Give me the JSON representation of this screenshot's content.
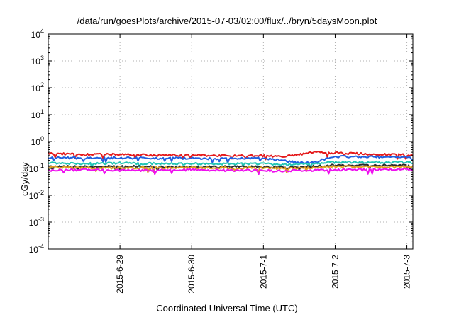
{
  "chart_data": {
    "type": "line",
    "title": "/data/run/goesPlots/archive/2015-07-03/02:00/flux/../bryn/5daysMoon.plot",
    "xlabel": "Coordinated Universal Time (UTC)",
    "ylabel": "cGy/day",
    "yscale": "log",
    "ylim": [
      0.0001,
      10000
    ],
    "y_ticks": [
      {
        "value": 0.0001,
        "base": "10",
        "exp": "-4"
      },
      {
        "value": 0.001,
        "base": "10",
        "exp": "-3"
      },
      {
        "value": 0.01,
        "base": "10",
        "exp": "-2"
      },
      {
        "value": 0.1,
        "base": "10",
        "exp": "-1"
      },
      {
        "value": 1,
        "base": "10",
        "exp": "0"
      },
      {
        "value": 10,
        "base": "10",
        "exp": "1"
      },
      {
        "value": 100,
        "base": "10",
        "exp": "2"
      },
      {
        "value": 1000,
        "base": "10",
        "exp": "3"
      },
      {
        "value": 10000,
        "base": "10",
        "exp": "4"
      }
    ],
    "xlim": [
      "2015-06-28 00:00",
      "2015-07-03 02:00"
    ],
    "x_ticks": [
      {
        "date": "2015-06-29 00:00",
        "label": "2015-6-29"
      },
      {
        "date": "2015-06-30 00:00",
        "label": "2015-6-30"
      },
      {
        "date": "2015-07-01 00:00",
        "label": "2015-7-1"
      },
      {
        "date": "2015-07-02 00:00",
        "label": "2015-7-2"
      },
      {
        "date": "2015-07-03 00:00",
        "label": "2015-7-3"
      }
    ],
    "grid": true,
    "x": [
      "2015-06-28 00:00",
      "2015-06-28 12:00",
      "2015-06-29 00:00",
      "2015-06-29 12:00",
      "2015-06-30 00:00",
      "2015-06-30 12:00",
      "2015-07-01 00:00",
      "2015-07-01 06:00",
      "2015-07-01 12:00",
      "2015-07-01 18:00",
      "2015-07-02 00:00",
      "2015-07-02 12:00",
      "2015-07-03 00:00",
      "2015-07-03 02:00"
    ],
    "series": [
      {
        "color": "#e41a1c",
        "values": [
          0.36,
          0.33,
          0.33,
          0.31,
          0.31,
          0.3,
          0.3,
          0.27,
          0.33,
          0.4,
          0.38,
          0.34,
          0.32,
          0.3
        ]
      },
      {
        "color": "#1f5fe0",
        "values": [
          0.26,
          0.24,
          0.25,
          0.24,
          0.24,
          0.23,
          0.24,
          0.2,
          0.16,
          0.18,
          0.28,
          0.27,
          0.26,
          0.23
        ]
      },
      {
        "color": "#22c6b5",
        "values": [
          0.16,
          0.15,
          0.16,
          0.15,
          0.15,
          0.15,
          0.15,
          0.14,
          0.14,
          0.15,
          0.17,
          0.17,
          0.17,
          0.16
        ]
      },
      {
        "color": "#2a2a2a",
        "values": [
          0.12,
          0.115,
          0.12,
          0.115,
          0.115,
          0.115,
          0.115,
          0.11,
          0.11,
          0.12,
          0.13,
          0.13,
          0.13,
          0.12
        ]
      },
      {
        "color": "#e0a020",
        "values": [
          0.11,
          0.105,
          0.105,
          0.105,
          0.105,
          0.105,
          0.105,
          0.1,
          0.1,
          0.11,
          0.115,
          0.115,
          0.115,
          0.11
        ]
      },
      {
        "color": "#ee10ee",
        "values": [
          0.085,
          0.09,
          0.085,
          0.085,
          0.09,
          0.085,
          0.085,
          0.08,
          0.085,
          0.085,
          0.09,
          0.09,
          0.095,
          0.09
        ]
      }
    ]
  }
}
